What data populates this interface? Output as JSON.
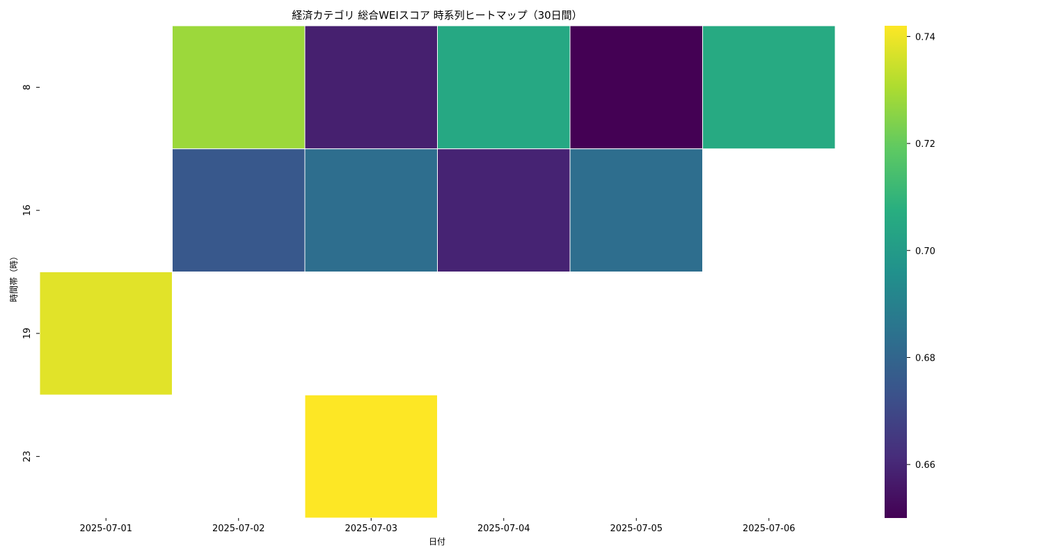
{
  "chart_data": {
    "type": "heatmap",
    "title": "経済カテゴリ 総合WEIスコア 時系列ヒートマップ（30日間）",
    "xlabel": "日付",
    "ylabel": "時間帯（時）",
    "x_categories": [
      "2025-07-01",
      "2025-07-02",
      "2025-07-03",
      "2025-07-04",
      "2025-07-05",
      "2025-07-06"
    ],
    "y_categories": [
      "8",
      "16",
      "19",
      "23"
    ],
    "values": [
      [
        null,
        0.728,
        0.658,
        0.705,
        0.65,
        0.706
      ],
      [
        null,
        0.675,
        0.683,
        0.659,
        0.683,
        null
      ],
      [
        0.738,
        null,
        null,
        null,
        null,
        null
      ],
      [
        null,
        null,
        0.742,
        null,
        null,
        null
      ]
    ],
    "colormap": "viridis",
    "colorbar": {
      "min": 0.65,
      "max": 0.742,
      "ticks": [
        "0.66",
        "0.68",
        "0.70",
        "0.72",
        "0.74"
      ]
    }
  }
}
